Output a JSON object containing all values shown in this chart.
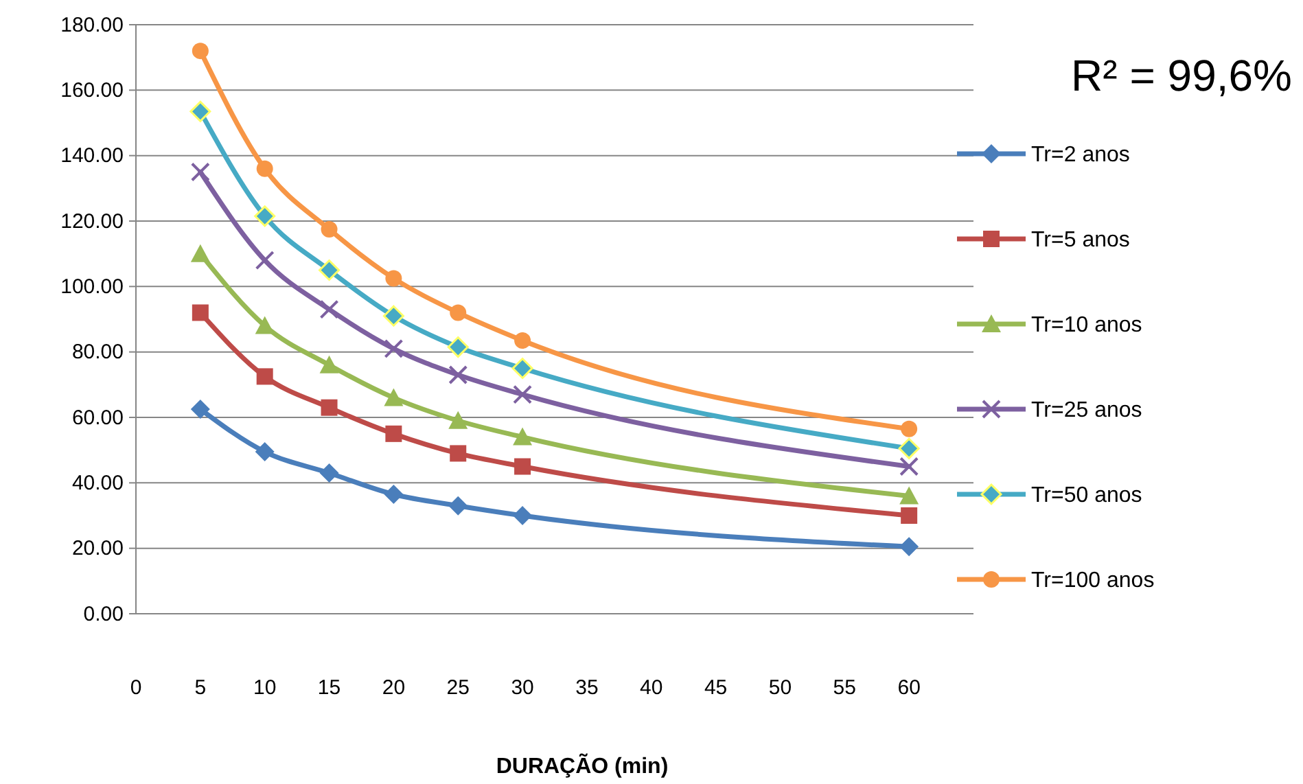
{
  "chart_data": {
    "type": "line",
    "xlabel": "DURAÇÃO (min)",
    "annotations": [
      "R² = 99,6%"
    ],
    "x": [
      5,
      10,
      15,
      20,
      25,
      30,
      60
    ],
    "xlim": [
      0,
      65
    ],
    "xticks": [
      0,
      5,
      10,
      15,
      20,
      25,
      30,
      35,
      40,
      45,
      50,
      55,
      60
    ],
    "ylim": [
      0,
      180
    ],
    "yticks": [
      {
        "value": 0,
        "label": "0.00"
      },
      {
        "value": 20,
        "label": "20.00"
      },
      {
        "value": 40,
        "label": "40.00"
      },
      {
        "value": 60,
        "label": "60.00"
      },
      {
        "value": 80,
        "label": "80.00"
      },
      {
        "value": 100,
        "label": "100.00"
      },
      {
        "value": 120,
        "label": "120.00"
      },
      {
        "value": 140,
        "label": "140.00"
      },
      {
        "value": 160,
        "label": "160.00"
      },
      {
        "value": 180,
        "label": "180.00"
      }
    ],
    "grid": "y",
    "legend": "right",
    "series": [
      {
        "name": "Tr=2 anos",
        "color": "#4a7ebb",
        "marker": "diamond",
        "values": [
          62.5,
          49.5,
          43,
          36.5,
          33,
          30,
          20.5
        ]
      },
      {
        "name": "Tr=5 anos",
        "color": "#be4b48",
        "marker": "square",
        "values": [
          92,
          72.5,
          63,
          55,
          49,
          45,
          30
        ]
      },
      {
        "name": "Tr=10 anos",
        "color": "#98b954",
        "marker": "triangle",
        "values": [
          110,
          88,
          76,
          66,
          59,
          54,
          36
        ]
      },
      {
        "name": "Tr=25 anos",
        "color": "#7d60a0",
        "marker": "cross",
        "values": [
          135,
          108,
          93,
          81,
          73,
          67,
          45
        ]
      },
      {
        "name": "Tr=50 anos",
        "color": "#46aac5",
        "marker": "diamond",
        "values": [
          153.5,
          121.5,
          105,
          91,
          81.5,
          75,
          50.5
        ]
      },
      {
        "name": "Tr=100 anos",
        "color": "#f79646",
        "marker": "circle",
        "values": [
          172,
          136,
          117.5,
          102.5,
          92,
          83.5,
          56.5
        ]
      }
    ]
  }
}
